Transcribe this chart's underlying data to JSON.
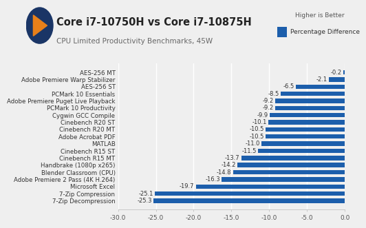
{
  "title": "Core i7-10750H vs Core i7-10875H",
  "subtitle": "CPU Limited Productivity Benchmarks, 45W",
  "legend_text": "Percentage Difference",
  "higher_is_better": "Higher is Better",
  "categories": [
    "AES-256 MT",
    "Adobe Premiere Warp Stabilizer",
    "AES-256 ST",
    "PCMark 10 Essentials",
    "Adobe Premiere Puget Live Playback",
    "PCMark 10 Productivity",
    "Cygwin GCC Compile",
    "Cinebench R20 ST",
    "Cinebench R20 MT",
    "Adobe Acrobat PDF",
    "MATLAB",
    "Cinebench R15 ST",
    "Cinebench R15 MT",
    "Handbrake (1080p x265)",
    "Blender Classroom (CPU)",
    "Adobe Premiere 2 Pass (4K H.264)",
    "Microsoft Excel",
    "7-Zip Compression",
    "7-Zip Decompression"
  ],
  "values": [
    -0.2,
    -2.1,
    -6.5,
    -8.5,
    -9.2,
    -9.2,
    -9.9,
    -10.1,
    -10.5,
    -10.5,
    -11.0,
    -11.5,
    -13.7,
    -14.2,
    -14.8,
    -16.3,
    -19.7,
    -25.1,
    -25.3
  ],
  "bar_color": "#1c5eab",
  "background_color": "#efefef",
  "grid_color": "#ffffff",
  "xlim": [
    -30,
    0
  ],
  "xticks": [
    -30.0,
    -25.0,
    -20.0,
    -15.0,
    -10.0,
    -5.0,
    0.0
  ],
  "xtick_labels": [
    "-30.0",
    "-25.0",
    "-20.0",
    "-15.0",
    "-10.0",
    "-5.0",
    "0.0"
  ],
  "title_fontsize": 10.5,
  "subtitle_fontsize": 7.5,
  "label_fontsize": 6.2,
  "value_fontsize": 6.0,
  "tick_fontsize": 6.5,
  "logo_circle_color": "#1a3566",
  "logo_triangle_color": "#e8801a",
  "legend_label_fontsize": 6.5,
  "higher_fontsize": 6.5
}
